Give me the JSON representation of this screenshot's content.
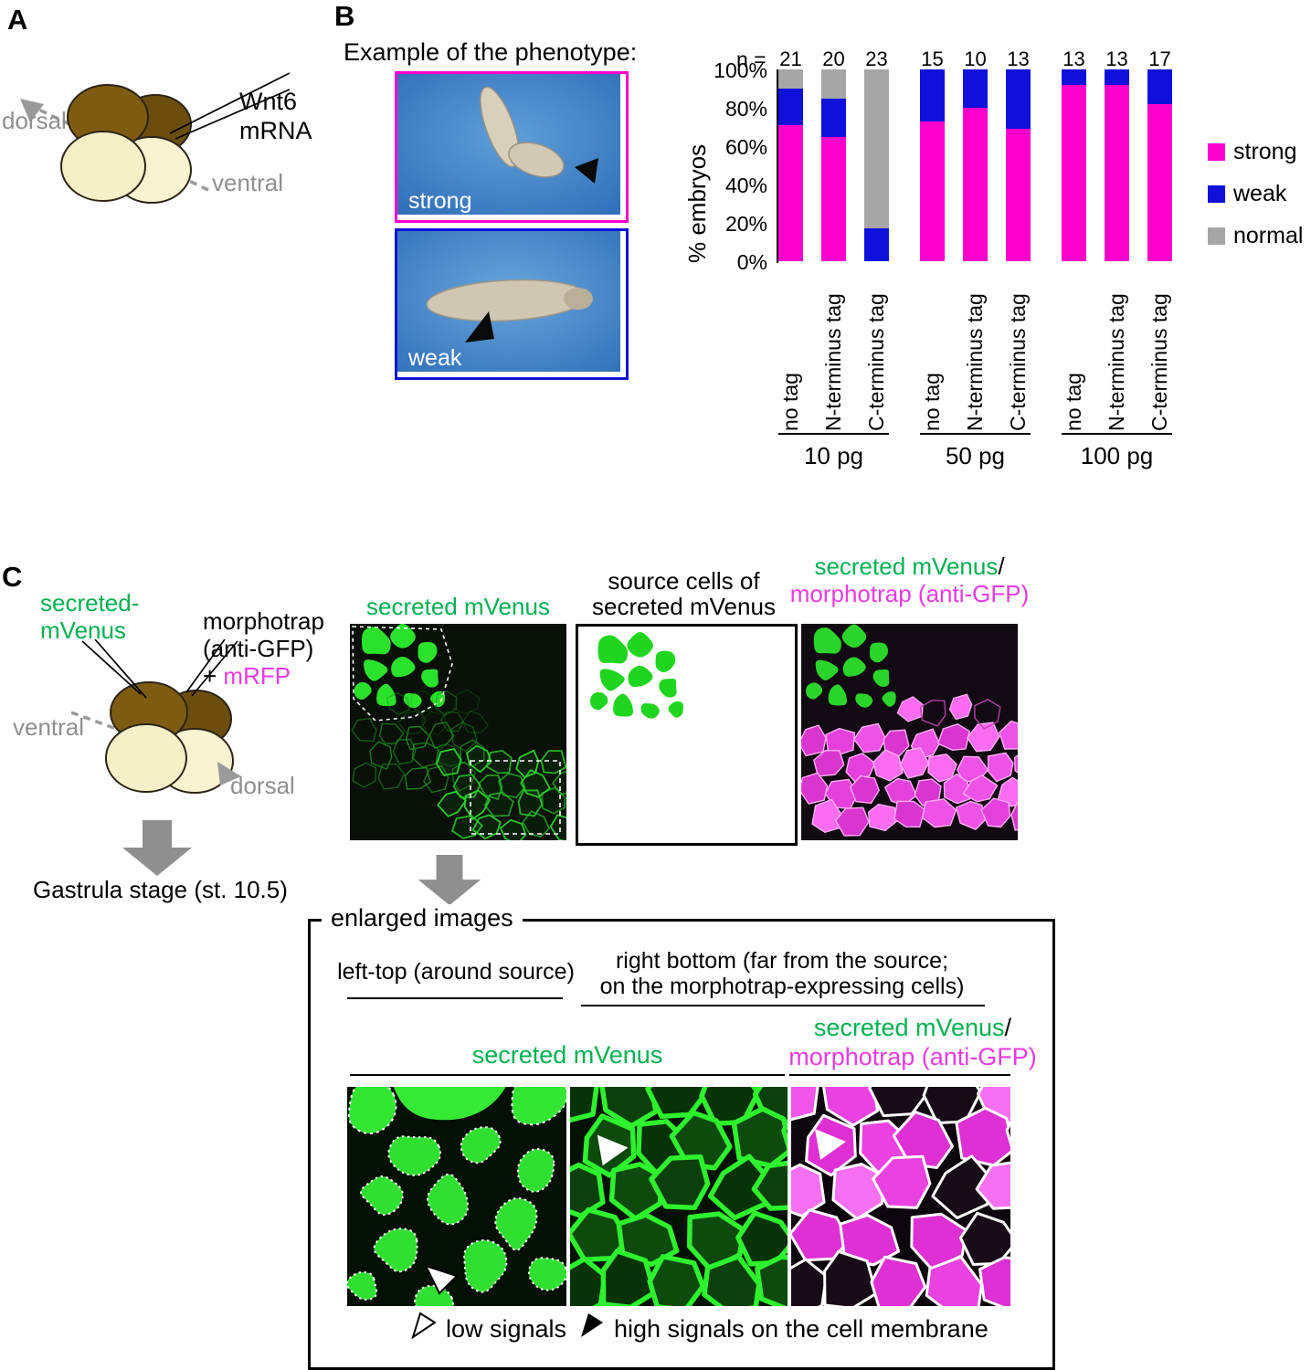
{
  "panel_a": {
    "label": "A",
    "wnt6_line1": "Wnt6",
    "wnt6_line2": "mRNA",
    "dorsal": "dorsal",
    "ventral": "ventral"
  },
  "panel_b": {
    "label": "B",
    "example_title": "Example of the phenotype:",
    "strong_label": "strong",
    "weak_label": "weak"
  },
  "chart_data": {
    "type": "stacked-bar",
    "ylabel": "% embryos",
    "ylim": [
      0,
      100
    ],
    "y_ticks": [
      "100%",
      "80%",
      "60%",
      "40%",
      "20%",
      "0%"
    ],
    "n_prefix": "n =",
    "series_order": [
      "strong",
      "weak",
      "normal"
    ],
    "legend": [
      {
        "label": "strong",
        "color": "#ff00cc"
      },
      {
        "label": "weak",
        "color": "#1010dc"
      },
      {
        "label": "normal",
        "color": "#a6a6a6"
      }
    ],
    "groups": [
      {
        "label": "10 pg",
        "bars": [
          {
            "tick": "no tag",
            "n": 21,
            "values": {
              "strong": 71,
              "weak": 19,
              "normal": 10
            }
          },
          {
            "tick": "N-terminus tag",
            "n": 20,
            "values": {
              "strong": 65,
              "weak": 20,
              "normal": 15
            }
          },
          {
            "tick": "C-terminus tag",
            "n": 23,
            "values": {
              "strong": 0,
              "weak": 17,
              "normal": 83
            }
          }
        ]
      },
      {
        "label": "50 pg",
        "bars": [
          {
            "tick": "no tag",
            "n": 15,
            "values": {
              "strong": 73,
              "weak": 27,
              "normal": 0
            }
          },
          {
            "tick": "N-terminus tag",
            "n": 10,
            "values": {
              "strong": 80,
              "weak": 20,
              "normal": 0
            }
          },
          {
            "tick": "C-terminus tag",
            "n": 13,
            "values": {
              "strong": 69,
              "weak": 31,
              "normal": 0
            }
          }
        ]
      },
      {
        "label": "100 pg",
        "bars": [
          {
            "tick": "no tag",
            "n": 13,
            "values": {
              "strong": 92,
              "weak": 8,
              "normal": 0
            }
          },
          {
            "tick": "N-terminus tag",
            "n": 13,
            "values": {
              "strong": 92,
              "weak": 8,
              "normal": 0
            }
          },
          {
            "tick": "C-terminus tag",
            "n": 17,
            "values": {
              "strong": 82,
              "weak": 18,
              "normal": 0
            }
          }
        ]
      }
    ]
  },
  "panel_c": {
    "label": "C",
    "secreted_line1": "secreted-",
    "secreted_line2": "mVenus",
    "morphotrap_line1": "morphotrap",
    "morphotrap_line2": "(anti-GFP)",
    "morphotrap_line3_plus": "+ ",
    "morphotrap_line3_mrfp": "mRFP",
    "ventral": "ventral",
    "dorsal": "dorsal",
    "stage_label": "Gastrula stage (st. 10.5)",
    "img1_title": "secreted mVenus",
    "img2_title_line1": "source cells of",
    "img2_title_line2": "secreted mVenus",
    "img3_title_green": "secreted mVenus",
    "img3_title_slash": "/",
    "img3_title_magenta": "morphotrap (anti-GFP)"
  },
  "enlarged": {
    "box_title": "enlarged images",
    "col_left_header": "left-top (around source)",
    "col_right_header_line1": "right bottom (far from the source;",
    "col_right_header_line2": "on the morphotrap-expressing cells)",
    "mvenus_header": "secreted mVenus",
    "merge_header_green": "secreted mVenus",
    "merge_header_slash": "/",
    "merge_header_magenta": "morphotrap (anti-GFP)",
    "caption_low": "low signals",
    "caption_high": "high signals on the cell membrane"
  },
  "colors": {
    "green_text": "#00b050",
    "magenta_text": "#e83be0",
    "strong_border": "#ff00cc",
    "weak_border": "#1212dc",
    "gray_label": "#8f8f8f"
  }
}
